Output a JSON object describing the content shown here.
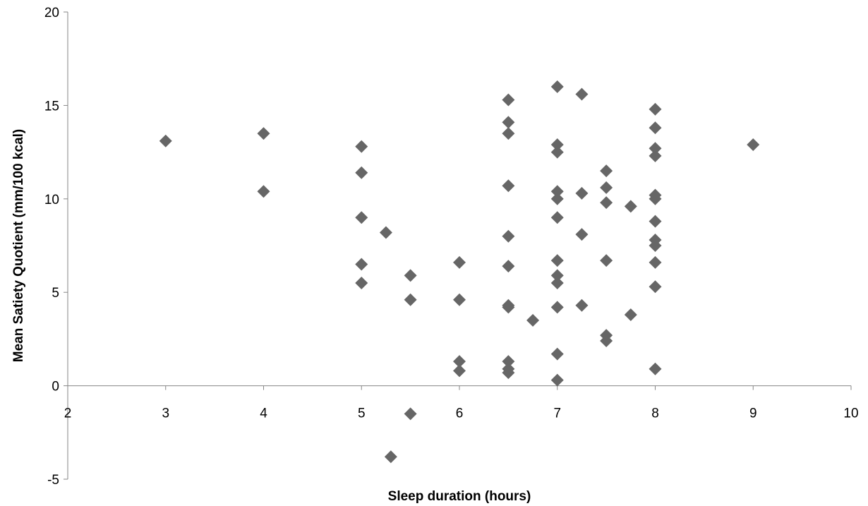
{
  "chart_data": {
    "type": "scatter",
    "title": "",
    "xlabel": "Sleep duration (hours)",
    "ylabel": "Mean Satiety Quotient (mm/100 kcal)",
    "xlim": [
      2,
      10
    ],
    "ylim": [
      -5,
      20
    ],
    "x_ticks": [
      "2",
      "3",
      "4",
      "5",
      "6",
      "7",
      "8",
      "9",
      "10"
    ],
    "y_ticks": [
      "20",
      "15",
      "10",
      "5",
      "0",
      "-5"
    ],
    "grid": false,
    "legend": "none",
    "marker": "diamond",
    "marker_color": "#666666",
    "series": [
      {
        "points": [
          [
            3,
            13.1
          ],
          [
            4,
            13.5
          ],
          [
            4,
            10.4
          ],
          [
            5,
            12.8
          ],
          [
            5,
            11.4
          ],
          [
            5,
            9.0
          ],
          [
            5,
            6.5
          ],
          [
            5,
            5.5
          ],
          [
            5.25,
            8.2
          ],
          [
            5.5,
            5.9
          ],
          [
            5.5,
            4.6
          ],
          [
            5.5,
            -1.5
          ],
          [
            5.3,
            -3.8
          ],
          [
            6,
            6.6
          ],
          [
            6,
            4.6
          ],
          [
            6,
            1.3
          ],
          [
            6,
            0.8
          ],
          [
            6.5,
            15.3
          ],
          [
            6.5,
            14.1
          ],
          [
            6.5,
            13.5
          ],
          [
            6.5,
            10.7
          ],
          [
            6.5,
            8.0
          ],
          [
            6.5,
            6.4
          ],
          [
            6.5,
            4.3
          ],
          [
            6.5,
            4.2
          ],
          [
            6.5,
            1.3
          ],
          [
            6.5,
            0.9
          ],
          [
            6.5,
            0.7
          ],
          [
            6.75,
            3.5
          ],
          [
            7,
            16.0
          ],
          [
            7,
            12.9
          ],
          [
            7,
            12.5
          ],
          [
            7,
            10.4
          ],
          [
            7,
            10.0
          ],
          [
            7,
            9.0
          ],
          [
            7,
            6.7
          ],
          [
            7,
            5.9
          ],
          [
            7,
            5.5
          ],
          [
            7,
            4.2
          ],
          [
            7,
            1.7
          ],
          [
            7,
            0.3
          ],
          [
            7.25,
            15.6
          ],
          [
            7.25,
            10.3
          ],
          [
            7.25,
            8.1
          ],
          [
            7.25,
            4.3
          ],
          [
            7.5,
            11.5
          ],
          [
            7.5,
            10.6
          ],
          [
            7.5,
            9.8
          ],
          [
            7.5,
            6.7
          ],
          [
            7.5,
            2.7
          ],
          [
            7.5,
            2.4
          ],
          [
            7.75,
            9.6
          ],
          [
            7.75,
            3.8
          ],
          [
            8,
            14.8
          ],
          [
            8,
            13.8
          ],
          [
            8,
            12.7
          ],
          [
            8,
            12.3
          ],
          [
            8,
            10.2
          ],
          [
            8,
            10.0
          ],
          [
            8,
            8.8
          ],
          [
            8,
            7.8
          ],
          [
            8,
            7.5
          ],
          [
            8,
            6.6
          ],
          [
            8,
            5.3
          ],
          [
            8,
            0.9
          ],
          [
            9,
            12.9
          ]
        ]
      }
    ]
  }
}
